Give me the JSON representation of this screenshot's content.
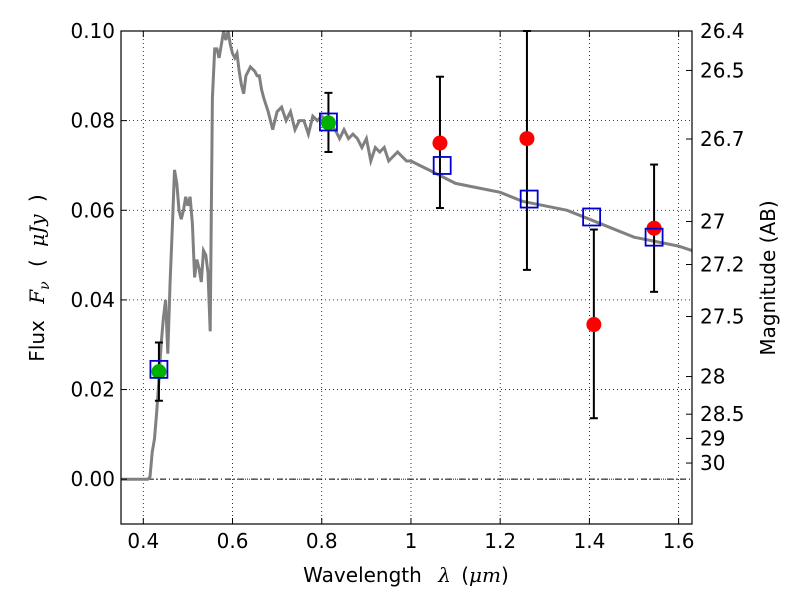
{
  "chart_data": {
    "type": "scatter",
    "title": "",
    "xlabel": {
      "prefix": "Wavelength",
      "symbol": "λ",
      "unit_open": "(",
      "unit": "μm",
      "unit_close": ")"
    },
    "ylabel": {
      "prefix": "Flux",
      "symbol": "F",
      "subscript": "ν",
      "unit_open": "(",
      "unit": "μJy",
      "unit_close": ")"
    },
    "y2label": "Magnitude (AB)",
    "xlim": [
      0.35,
      1.63
    ],
    "ylim": [
      -0.01,
      0.1
    ],
    "grid": true,
    "xticks": [
      {
        "value": 0.4,
        "label": "0.4"
      },
      {
        "value": 0.6,
        "label": "0.6"
      },
      {
        "value": 0.8,
        "label": "0.8"
      },
      {
        "value": 1.0,
        "label": "1"
      },
      {
        "value": 1.2,
        "label": "1.2"
      },
      {
        "value": 1.4,
        "label": "1.4"
      },
      {
        "value": 1.6,
        "label": "1.6"
      }
    ],
    "yticks": [
      {
        "value": 0.0,
        "label": "0.00"
      },
      {
        "value": 0.02,
        "label": "0.02"
      },
      {
        "value": 0.04,
        "label": "0.04"
      },
      {
        "value": 0.06,
        "label": "0.06"
      },
      {
        "value": 0.08,
        "label": "0.08"
      },
      {
        "value": 0.1,
        "label": "0.10"
      }
    ],
    "y2ticks": [
      {
        "label": "26.4",
        "flux": 0.1
      },
      {
        "label": "26.5",
        "flux": 0.0912
      },
      {
        "label": "26.7",
        "flux": 0.0759
      },
      {
        "label": "27",
        "flux": 0.0575
      },
      {
        "label": "27.2",
        "flux": 0.0479
      },
      {
        "label": "27.5",
        "flux": 0.0363
      },
      {
        "label": "28",
        "flux": 0.0229
      },
      {
        "label": "28.5",
        "flux": 0.0145
      },
      {
        "label": "29",
        "flux": 0.0091
      },
      {
        "label": "30",
        "flux": 0.0036
      }
    ],
    "series": [
      {
        "kind": "model_sed",
        "color": "#808080",
        "x": [
          0.35,
          0.4,
          0.41,
          0.415,
          0.42,
          0.425,
          0.43,
          0.435,
          0.44,
          0.445,
          0.45,
          0.455,
          0.46,
          0.465,
          0.47,
          0.475,
          0.48,
          0.485,
          0.49,
          0.495,
          0.5,
          0.505,
          0.51,
          0.515,
          0.52,
          0.525,
          0.53,
          0.535,
          0.54,
          0.545,
          0.55,
          0.555,
          0.56,
          0.565,
          0.57,
          0.575,
          0.58,
          0.585,
          0.59,
          0.595,
          0.6,
          0.605,
          0.61,
          0.615,
          0.62,
          0.625,
          0.63,
          0.64,
          0.65,
          0.655,
          0.66,
          0.665,
          0.67,
          0.68,
          0.69,
          0.7,
          0.71,
          0.72,
          0.73,
          0.74,
          0.75,
          0.76,
          0.77,
          0.78,
          0.79,
          0.8,
          0.81,
          0.82,
          0.83,
          0.84,
          0.85,
          0.86,
          0.87,
          0.88,
          0.89,
          0.9,
          0.91,
          0.92,
          0.93,
          0.94,
          0.95,
          0.96,
          0.97,
          0.98,
          0.99,
          1.0,
          1.02,
          1.04,
          1.06,
          1.08,
          1.1,
          1.15,
          1.2,
          1.25,
          1.3,
          1.35,
          1.4,
          1.45,
          1.5,
          1.55,
          1.6,
          1.63
        ],
        "y": [
          0.0,
          0.0,
          0.0,
          0.0005,
          0.006,
          0.009,
          0.015,
          0.022,
          0.03,
          0.036,
          0.04,
          0.028,
          0.044,
          0.056,
          0.069,
          0.066,
          0.06,
          0.058,
          0.06,
          0.063,
          0.061,
          0.063,
          0.057,
          0.045,
          0.049,
          0.047,
          0.044,
          0.051,
          0.05,
          0.046,
          0.033,
          0.085,
          0.096,
          0.096,
          0.094,
          0.097,
          0.1,
          0.098,
          0.1,
          0.097,
          0.095,
          0.094,
          0.095,
          0.091,
          0.088,
          0.086,
          0.09,
          0.092,
          0.091,
          0.09,
          0.09,
          0.087,
          0.085,
          0.082,
          0.078,
          0.082,
          0.083,
          0.08,
          0.082,
          0.078,
          0.08,
          0.08,
          0.077,
          0.081,
          0.08,
          0.081,
          0.08,
          0.079,
          0.078,
          0.076,
          0.078,
          0.076,
          0.077,
          0.076,
          0.074,
          0.076,
          0.071,
          0.074,
          0.073,
          0.074,
          0.071,
          0.072,
          0.073,
          0.072,
          0.071,
          0.071,
          0.07,
          0.069,
          0.068,
          0.067,
          0.066,
          0.065,
          0.064,
          0.062,
          0.061,
          0.06,
          0.058,
          0.056,
          0.054,
          0.053,
          0.052,
          0.051
        ]
      },
      {
        "kind": "detections",
        "color": "#00b000",
        "points": [
          {
            "x": 0.435,
            "y": 0.024,
            "err_low": 0.0175,
            "err_high": 0.0305
          },
          {
            "x": 0.815,
            "y": 0.0795,
            "err_low": 0.073,
            "err_high": 0.0862
          }
        ]
      },
      {
        "kind": "upper_limits",
        "color": "#ff0000",
        "points": [
          {
            "x": 1.065,
            "y": 0.075,
            "err_low": 0.0605,
            "err_high": 0.0898
          },
          {
            "x": 1.26,
            "y": 0.076,
            "err_low": 0.0467,
            "err_high": 0.1
          },
          {
            "x": 1.41,
            "y": 0.0345,
            "err_low": 0.0136,
            "err_high": 0.0557
          },
          {
            "x": 1.545,
            "y": 0.056,
            "err_low": 0.0418,
            "err_high": 0.0702
          }
        ]
      },
      {
        "kind": "model_photometry",
        "color": "#0000cc",
        "points": [
          {
            "x": 0.435,
            "y": 0.0245
          },
          {
            "x": 0.815,
            "y": 0.0797
          },
          {
            "x": 1.07,
            "y": 0.07
          },
          {
            "x": 1.265,
            "y": 0.0625
          },
          {
            "x": 1.405,
            "y": 0.0585
          },
          {
            "x": 1.545,
            "y": 0.054
          }
        ]
      }
    ]
  }
}
